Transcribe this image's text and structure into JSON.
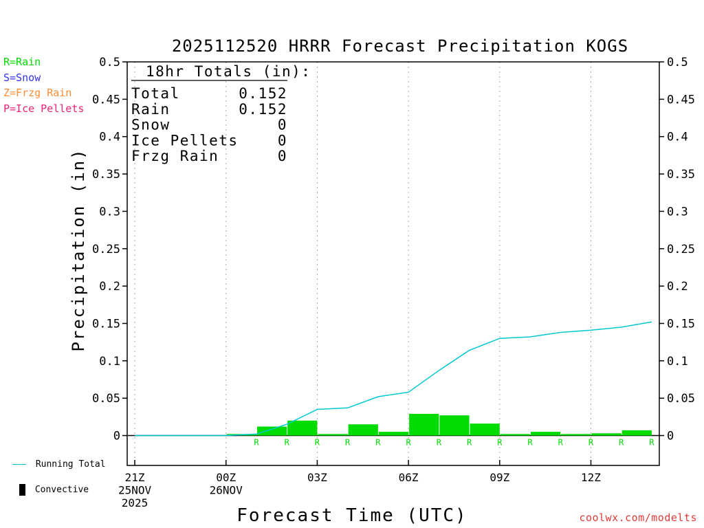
{
  "legend_left": [
    {
      "text": "R=Rain",
      "color": "#00dc00"
    },
    {
      "text": "S=Snow",
      "color": "#3333ee"
    },
    {
      "text": "Z=Frzg Rain",
      "color": "#ff8c33"
    },
    {
      "text": "P=Ice Pellets",
      "color": "#ee2277"
    }
  ],
  "bottom_legend": {
    "running_total": "Running Total",
    "convective": "Convective"
  },
  "footer": "coolwx.com/modelts",
  "chart_data": {
    "type": "bar",
    "title": "2025112520 HRRR Forecast Precipitation KOGS",
    "ylabel": "Precipitation (in)",
    "xlabel": "Forecast Time (UTC)",
    "ylim": [
      -0.04,
      0.5
    ],
    "yticks": [
      0,
      0.05,
      0.1,
      0.15,
      0.2,
      0.25,
      0.3,
      0.35,
      0.4,
      0.45,
      0.5
    ],
    "ytick_labels": [
      "0",
      "0.05",
      "0.1",
      "0.15",
      "0.2",
      "0.25",
      "0.3",
      "0.35",
      "0.4",
      "0.45",
      "0.5"
    ],
    "xlim": [
      -0.25,
      17.25
    ],
    "xticks": [
      {
        "hour": 0,
        "lines": [
          "21Z",
          "25NOV",
          "2025"
        ]
      },
      {
        "hour": 3,
        "lines": [
          "00Z",
          "26NOV"
        ]
      },
      {
        "hour": 6,
        "lines": [
          "03Z"
        ]
      },
      {
        "hour": 9,
        "lines": [
          "06Z"
        ]
      },
      {
        "hour": 12,
        "lines": [
          "09Z"
        ]
      },
      {
        "hour": 15,
        "lines": [
          "12Z"
        ]
      }
    ],
    "hours": [
      0,
      1,
      2,
      3,
      4,
      5,
      6,
      7,
      8,
      9,
      10,
      11,
      12,
      13,
      14,
      15,
      16,
      17
    ],
    "hourly_precip": [
      0,
      0,
      0,
      0,
      0.002,
      0.012,
      0.02,
      0.002,
      0.015,
      0.005,
      0.029,
      0.027,
      0.016,
      0.002,
      0.005,
      0.002,
      0.003,
      0.007
    ],
    "running_total": [
      0,
      0,
      0,
      0,
      0.002,
      0.015,
      0.035,
      0.037,
      0.052,
      0.058,
      0.087,
      0.114,
      0.13,
      0.132,
      0.138,
      0.141,
      0.145,
      0.152
    ],
    "ptype_hours": [
      4,
      5,
      6,
      7,
      8,
      9,
      10,
      11,
      12,
      13,
      14,
      15,
      16,
      17
    ],
    "ptype_label": "R",
    "colors": {
      "rain": "#00dc00",
      "running_total": "#00c8d2",
      "convective": "#000000"
    },
    "totals": {
      "header": "18hr Totals (in):",
      "rows": [
        {
          "label": "Total",
          "value": "0.152"
        },
        {
          "label": "Rain",
          "value": "0.152"
        },
        {
          "label": "Snow",
          "value": "0"
        },
        {
          "label": "Ice Pellets",
          "value": "0"
        },
        {
          "label": "Frzg Rain",
          "value": "0"
        }
      ]
    }
  }
}
